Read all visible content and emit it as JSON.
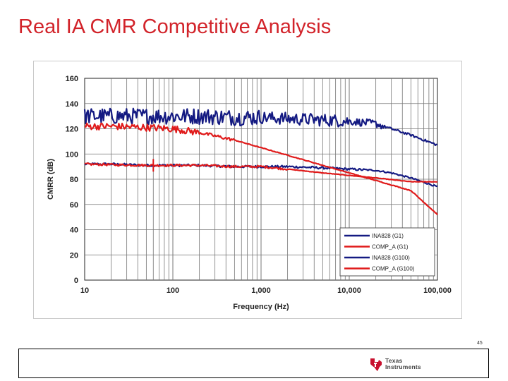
{
  "slide": {
    "title": "Real IA CMR Competitive Analysis",
    "page_number": "45",
    "logo": {
      "line1": "Texas",
      "line2": "Instruments"
    }
  },
  "colors": {
    "title": "#d2232a",
    "blue": "#141a82",
    "red": "#e01b1b",
    "grid": "#7a7a7a"
  },
  "chart_data": {
    "type": "line",
    "title": "",
    "xlabel": "Frequency (Hz)",
    "ylabel": "CMRR (dB)",
    "x_scale": "log",
    "xlim": [
      10,
      100000
    ],
    "ylim": [
      0,
      160
    ],
    "x_ticks": [
      10,
      100,
      1000,
      10000,
      100000
    ],
    "x_tick_labels": [
      "10",
      "100",
      "1,000",
      "10,000",
      "100,000"
    ],
    "y_ticks": [
      0,
      20,
      40,
      60,
      80,
      100,
      120,
      140,
      160
    ],
    "y_tick_labels": [
      "0",
      "20",
      "40",
      "60",
      "80",
      "100",
      "120",
      "140",
      "160"
    ],
    "grid": true,
    "legend_position": "bottom-right",
    "series": [
      {
        "name": "INA828 (G1)",
        "color": "#141a82",
        "noisy": true,
        "x": [
          10,
          20,
          50,
          100,
          200,
          500,
          1000,
          2000,
          5000,
          10000,
          20000,
          30000,
          50000,
          100000
        ],
        "y": [
          92,
          92,
          91,
          91,
          91,
          90,
          90,
          90,
          89,
          88,
          87,
          85,
          81,
          74
        ]
      },
      {
        "name": "COMP_A (G1)",
        "color": "#e01b1b",
        "noisy": true,
        "x": [
          10,
          20,
          50,
          100,
          200,
          500,
          1000,
          2000,
          5000,
          10000,
          20000,
          50000,
          100000
        ],
        "y": [
          92,
          91.5,
          91,
          91,
          91,
          90,
          90,
          88,
          85,
          83,
          81,
          78,
          78
        ]
      },
      {
        "name": "INA828 (G100)",
        "color": "#141a82",
        "noisy": true,
        "x": [
          10,
          20,
          50,
          100,
          200,
          500,
          1000,
          2000,
          5000,
          10000,
          20000,
          30000,
          50000,
          100000
        ],
        "y": [
          130,
          130,
          130,
          130,
          130,
          129,
          129,
          128,
          127,
          126,
          124,
          120,
          115,
          107
        ]
      },
      {
        "name": "COMP_A (G100)",
        "color": "#e01b1b",
        "noisy": true,
        "x": [
          10,
          20,
          50,
          100,
          200,
          500,
          1000,
          2000,
          5000,
          10000,
          20000,
          50000,
          100000
        ],
        "y": [
          122,
          122,
          121,
          120,
          117,
          111,
          105,
          99,
          91,
          85,
          79,
          71,
          52
        ]
      }
    ]
  }
}
